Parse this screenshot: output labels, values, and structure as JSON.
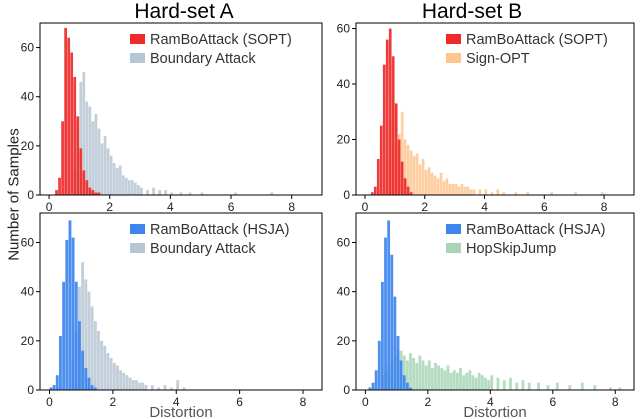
{
  "figure": {
    "col_titles": [
      "Hard-set A",
      "Hard-set B"
    ],
    "row_ylabel": "Number of Samples"
  },
  "chart_data": [
    {
      "type": "bar",
      "panel": "top-left",
      "title": "Hard-set A",
      "xlabel": "",
      "ylabel": "Number of Samples",
      "xlim": [
        -0.3,
        9.0
      ],
      "ylim": [
        0,
        70
      ],
      "xticks": [
        0,
        2,
        4,
        6,
        8
      ],
      "yticks": [
        0,
        20,
        40,
        60
      ],
      "bin_width": 0.1,
      "legend": "top-right",
      "series": [
        {
          "name": "Boundary Attack",
          "color": "#b7c6d3",
          "x": [
            0.8,
            0.9,
            1.0,
            1.1,
            1.2,
            1.3,
            1.4,
            1.5,
            1.6,
            1.7,
            1.8,
            1.9,
            2.0,
            2.1,
            2.2,
            2.3,
            2.4,
            2.5,
            2.6,
            2.7,
            2.8,
            2.9,
            3.0,
            3.2,
            3.4,
            3.6,
            3.8,
            4.0,
            4.3,
            4.6,
            5.0,
            6.1,
            7.3
          ],
          "values": [
            10,
            28,
            46,
            50,
            38,
            36,
            30,
            33,
            27,
            21,
            24,
            19,
            16,
            13,
            11,
            12,
            8,
            7,
            6,
            6,
            5,
            4,
            3,
            2,
            3,
            2,
            2,
            1,
            1,
            1,
            1,
            1,
            1
          ]
        },
        {
          "name": "RamBoAttack (SOPT)",
          "color": "#ee2a2a",
          "x": [
            0.2,
            0.3,
            0.4,
            0.5,
            0.6,
            0.7,
            0.8,
            0.9,
            1.0,
            1.1,
            1.2,
            1.3,
            1.4,
            1.5,
            1.6
          ],
          "values": [
            2,
            7,
            30,
            68,
            64,
            58,
            48,
            32,
            19,
            10,
            6,
            3,
            2,
            1,
            1
          ]
        }
      ]
    },
    {
      "type": "bar",
      "panel": "top-right",
      "title": "Hard-set B",
      "xlabel": "",
      "ylabel": "",
      "xlim": [
        -0.3,
        9.0
      ],
      "ylim": [
        0,
        62
      ],
      "xticks": [
        0,
        2,
        4,
        6,
        8
      ],
      "yticks": [
        0,
        20,
        40,
        60
      ],
      "bin_width": 0.1,
      "legend": "top-right",
      "series": [
        {
          "name": "Sign-OPT",
          "color": "#fdc58f",
          "x": [
            0.7,
            0.8,
            0.9,
            1.0,
            1.1,
            1.2,
            1.3,
            1.4,
            1.5,
            1.6,
            1.7,
            1.8,
            1.9,
            2.0,
            2.1,
            2.2,
            2.3,
            2.4,
            2.5,
            2.6,
            2.7,
            2.8,
            2.9,
            3.0,
            3.1,
            3.2,
            3.3,
            3.4,
            3.5,
            3.6,
            3.8,
            4.0,
            4.2,
            4.4,
            4.6,
            5.0,
            5.4,
            6.2,
            7.0,
            7.9
          ],
          "values": [
            12,
            26,
            34,
            32,
            22,
            30,
            20,
            18,
            16,
            14,
            15,
            11,
            13,
            9,
            10,
            8,
            7,
            6,
            8,
            5,
            6,
            4,
            4,
            4,
            3,
            4,
            3,
            3,
            2,
            2,
            2,
            2,
            1,
            2,
            1,
            1,
            1,
            1,
            1,
            1
          ]
        },
        {
          "name": "RamBoAttack (SOPT)",
          "color": "#ee2a2a",
          "x": [
            0.2,
            0.3,
            0.4,
            0.5,
            0.6,
            0.7,
            0.8,
            0.9,
            1.0,
            1.1,
            1.2,
            1.3,
            1.4,
            1.5
          ],
          "values": [
            1,
            3,
            13,
            25,
            47,
            56,
            60,
            50,
            33,
            20,
            12,
            6,
            3,
            1
          ]
        }
      ]
    },
    {
      "type": "bar",
      "panel": "bottom-left",
      "title": "",
      "xlabel": "Distortion",
      "ylabel": "Number of Samples",
      "xlim": [
        -0.3,
        8.6
      ],
      "ylim": [
        0,
        72
      ],
      "xticks": [
        0,
        2,
        4,
        6,
        8
      ],
      "yticks": [
        0,
        20,
        40,
        60
      ],
      "bin_width": 0.1,
      "legend": "top-right",
      "series": [
        {
          "name": "Boundary Attack",
          "color": "#b7c6d3",
          "x": [
            0.7,
            0.8,
            0.9,
            1.0,
            1.1,
            1.2,
            1.3,
            1.4,
            1.5,
            1.6,
            1.7,
            1.8,
            1.9,
            2.0,
            2.1,
            2.2,
            2.3,
            2.4,
            2.5,
            2.6,
            2.7,
            2.8,
            2.9,
            3.0,
            3.2,
            3.4,
            3.6,
            3.8,
            4.0,
            4.2
          ],
          "values": [
            12,
            24,
            42,
            52,
            45,
            40,
            34,
            28,
            24,
            20,
            18,
            15,
            13,
            11,
            10,
            8,
            7,
            6,
            5,
            4,
            4,
            3,
            3,
            2,
            2,
            1,
            2,
            1,
            4,
            1
          ]
        },
        {
          "name": "RamBoAttack (HSJA)",
          "color": "#3d86ee",
          "x": [
            0.0,
            0.1,
            0.2,
            0.3,
            0.4,
            0.5,
            0.6,
            0.7,
            0.8,
            0.9,
            1.0,
            1.1,
            1.2,
            1.3,
            1.4
          ],
          "values": [
            1,
            2,
            6,
            22,
            44,
            61,
            69,
            62,
            44,
            28,
            16,
            9,
            5,
            2,
            1
          ]
        }
      ]
    },
    {
      "type": "bar",
      "panel": "bottom-right",
      "title": "",
      "xlabel": "Distortion",
      "ylabel": "",
      "xlim": [
        -0.3,
        8.6
      ],
      "ylim": [
        0,
        72
      ],
      "xticks": [
        0,
        2,
        4,
        6,
        8
      ],
      "yticks": [
        0,
        20,
        40,
        60
      ],
      "bin_width": 0.1,
      "legend": "top-right",
      "series": [
        {
          "name": "HopSkipJump",
          "color": "#a8d5b6",
          "x": [
            0.5,
            0.6,
            0.7,
            0.8,
            0.9,
            1.0,
            1.1,
            1.2,
            1.3,
            1.4,
            1.5,
            1.6,
            1.7,
            1.8,
            1.9,
            2.0,
            2.1,
            2.2,
            2.3,
            2.4,
            2.5,
            2.6,
            2.7,
            2.8,
            2.9,
            3.0,
            3.1,
            3.2,
            3.3,
            3.4,
            3.5,
            3.6,
            3.7,
            3.8,
            3.9,
            4.0,
            4.2,
            4.4,
            4.6,
            4.8,
            5.0,
            5.2,
            5.5,
            5.8,
            6.1,
            6.5,
            6.9,
            7.3,
            7.8,
            8.1
          ],
          "values": [
            6,
            8,
            10,
            12,
            14,
            16,
            16,
            14,
            12,
            15,
            13,
            11,
            14,
            12,
            10,
            12,
            9,
            11,
            10,
            9,
            8,
            10,
            7,
            8,
            7,
            9,
            6,
            7,
            8,
            6,
            5,
            7,
            6,
            5,
            4,
            6,
            5,
            4,
            5,
            3,
            4,
            3,
            3,
            2,
            3,
            2,
            3,
            2,
            1,
            1
          ]
        },
        {
          "name": "RamBoAttack (HSJA)",
          "color": "#3d86ee",
          "x": [
            0.1,
            0.2,
            0.3,
            0.4,
            0.5,
            0.6,
            0.7,
            0.8,
            0.9,
            1.0,
            1.1,
            1.2,
            1.3,
            1.4
          ],
          "values": [
            1,
            3,
            8,
            20,
            44,
            62,
            69,
            55,
            38,
            22,
            12,
            6,
            3,
            1
          ]
        }
      ]
    }
  ]
}
